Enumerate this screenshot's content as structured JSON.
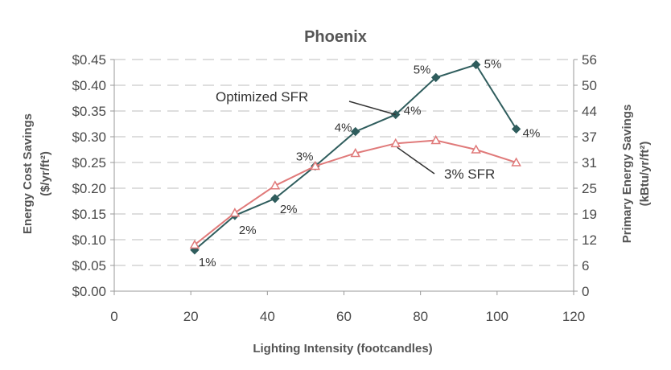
{
  "chart_data": {
    "type": "line",
    "title": "Phoenix",
    "xlabel": "Lighting Intensity (footcandles)",
    "ylabel_left": "Energy Cost Savings",
    "ylabel_left_units": "($/yr/ft²)",
    "ylabel_right": "Primary Energy Savings",
    "ylabel_right_units": "(kBtu/yr/ft²)",
    "xlim": [
      0,
      120
    ],
    "xticks": [
      "0",
      "20",
      "40",
      "60",
      "80",
      "100",
      "120"
    ],
    "xtick_values": [
      0,
      20,
      40,
      60,
      80,
      100,
      120
    ],
    "ylim_left": [
      0,
      0.45
    ],
    "yticks_left": [
      "$0.00",
      "$0.05",
      "$0.10",
      "$0.15",
      "$0.20",
      "$0.25",
      "$0.30",
      "$0.35",
      "$0.40",
      "$0.45"
    ],
    "ytick_values_left": [
      0,
      0.05,
      0.1,
      0.15,
      0.2,
      0.25,
      0.3,
      0.35,
      0.4,
      0.45
    ],
    "yticks_right": [
      "0",
      "6",
      "12",
      "19",
      "25",
      "31",
      "37",
      "44",
      "50",
      "56"
    ],
    "grid": true,
    "series": [
      {
        "name": "Optimized SFR",
        "marker": "diamond",
        "color": "#2f5d5d",
        "x": [
          21,
          31.5,
          42,
          52.5,
          63,
          73.5,
          84,
          94.5,
          105
        ],
        "y": [
          0.08,
          0.147,
          0.18,
          0.243,
          0.31,
          0.343,
          0.415,
          0.44,
          0.315
        ],
        "point_labels": [
          "1%",
          "2%",
          "2%",
          "3%",
          "4%",
          "4%",
          "5%",
          "5%",
          "4%"
        ]
      },
      {
        "name": "3% SFR",
        "marker": "triangle-open",
        "color": "#e07a7a",
        "x": [
          21,
          31.5,
          42,
          52.5,
          63,
          73.5,
          84,
          94.5,
          105
        ],
        "y": [
          0.09,
          0.152,
          0.205,
          0.243,
          0.268,
          0.287,
          0.293,
          0.275,
          0.25
        ]
      }
    ],
    "annotations": [
      {
        "text": "Optimized SFR",
        "series": "Optimized SFR"
      },
      {
        "text": "3% SFR",
        "series": "3% SFR"
      }
    ]
  }
}
